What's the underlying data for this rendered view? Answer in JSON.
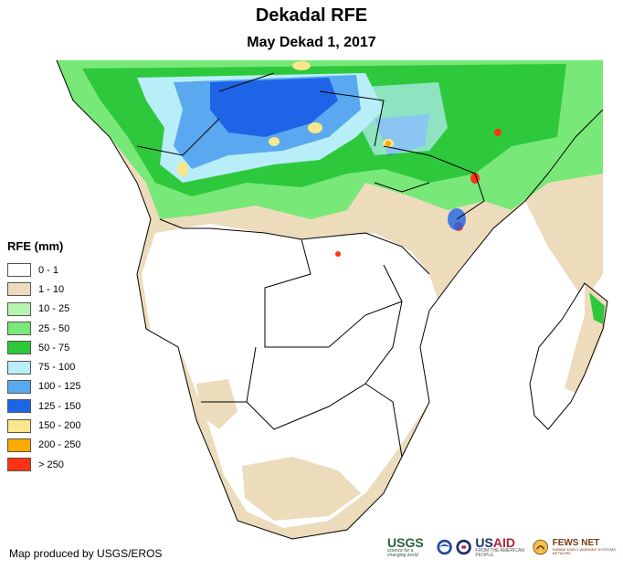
{
  "title": "Dekadal RFE",
  "subtitle": "May Dekad 1, 2017",
  "legend": {
    "title": "RFE (mm)",
    "items": [
      {
        "label": "0 - 1",
        "color": "#ffffff"
      },
      {
        "label": "1 - 10",
        "color": "#ecdcbc"
      },
      {
        "label": "10 - 25",
        "color": "#b6f6b0"
      },
      {
        "label": "25 - 50",
        "color": "#78e878"
      },
      {
        "label": "50 - 75",
        "color": "#2ec83c"
      },
      {
        "label": "75 - 100",
        "color": "#b8eef8"
      },
      {
        "label": "100 - 125",
        "color": "#5aa8f0"
      },
      {
        "label": "125 - 150",
        "color": "#1e64e6"
      },
      {
        "label": "150 - 200",
        "color": "#fae68c"
      },
      {
        "label": "200 - 250",
        "color": "#ffaa00"
      },
      {
        "label": "> 250",
        "color": "#ff3214"
      }
    ]
  },
  "credit": "Map produced by USGS/EROS",
  "logos": {
    "usgs": "USGS",
    "usgs_tagline": "science for a changing world",
    "usaid_a": "US",
    "usaid_b": "AID",
    "usaid_tagline": "FROM THE AMERICAN PEOPLE",
    "fews": "FEWS NET",
    "fews_tagline": "FAMINE EARLY WARNING SYSTEMS NETWORK"
  }
}
